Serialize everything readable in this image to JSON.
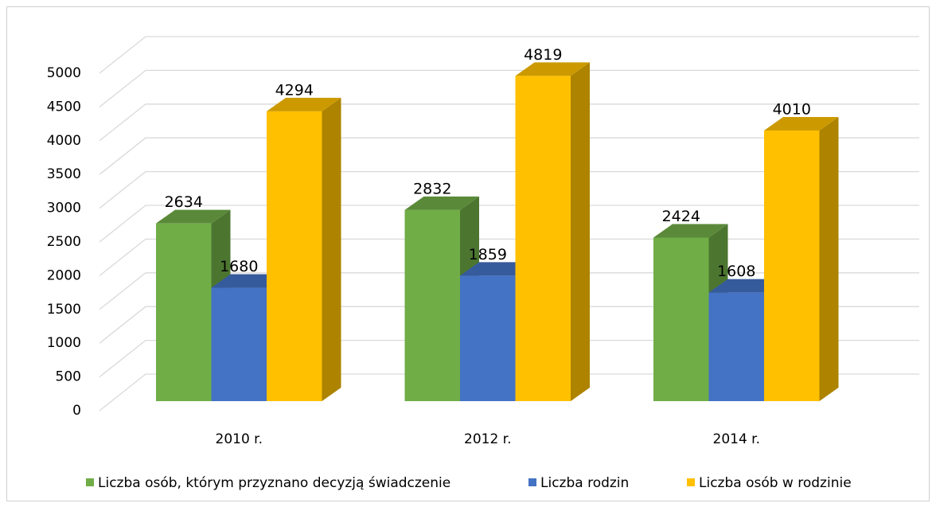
{
  "chart_data": {
    "type": "bar3d",
    "categories": [
      "2010 r.",
      "2012 r.",
      "2014 r."
    ],
    "series": [
      {
        "name": "Liczba osób, którym przyznano decyzją świadczenie",
        "color": "#70ad47",
        "values": [
          2634,
          2832,
          2424
        ]
      },
      {
        "name": "Liczba rodzin",
        "color": "#4472c4",
        "values": [
          1680,
          1859,
          1608
        ]
      },
      {
        "name": "Liczba osób w rodzinie",
        "color": "#ffc000",
        "values": [
          4294,
          4819,
          4010
        ]
      }
    ],
    "ylim": [
      0,
      5000
    ],
    "yticks": [
      0,
      500,
      1000,
      1500,
      2000,
      2500,
      3000,
      3500,
      4000,
      4500,
      5000
    ],
    "grid": true,
    "legend": "bottom"
  }
}
